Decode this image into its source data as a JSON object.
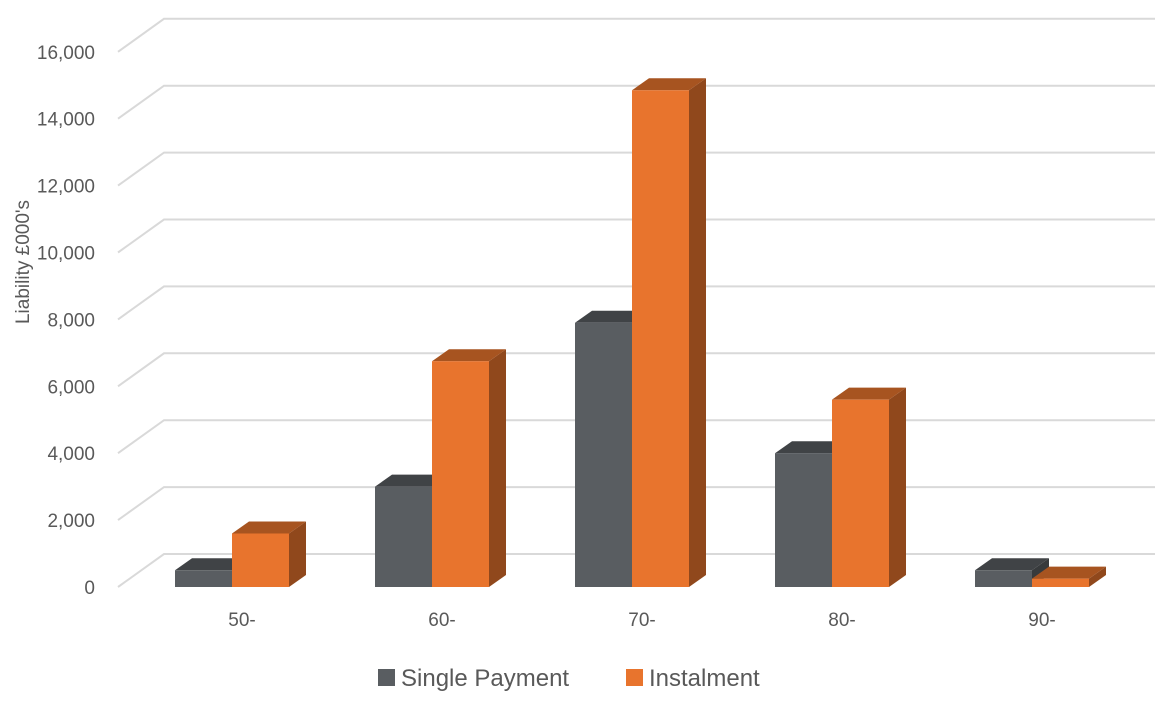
{
  "chart_data": {
    "type": "bar",
    "title": "",
    "xlabel": "",
    "ylabel": "Liability £000's",
    "categories": [
      "50-",
      "60-",
      "70-",
      "80-",
      "90-"
    ],
    "series": [
      {
        "name": "Single Payment",
        "values": [
          500,
          3000,
          7900,
          4000,
          500
        ],
        "color": "#595d61"
      },
      {
        "name": "Instalment",
        "values": [
          1600,
          6750,
          14850,
          5600,
          250
        ],
        "color": "#e8742d"
      }
    ],
    "ylim": [
      0,
      16000
    ],
    "yticks": [
      0,
      2000,
      4000,
      6000,
      8000,
      10000,
      12000,
      14000,
      16000
    ],
    "ytick_labels": [
      "0",
      "2,000",
      "4,000",
      "6,000",
      "8,000",
      "10,000",
      "12,000",
      "14,000",
      "16,000"
    ],
    "grid": true,
    "style": "3d-clustered-column",
    "legend_position": "bottom"
  }
}
